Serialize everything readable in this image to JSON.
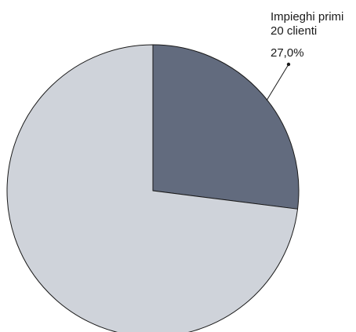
{
  "chart_data": {
    "type": "pie",
    "slices": [
      {
        "label_lines": [
          "Impieghi primi",
          "20 clienti"
        ],
        "value_label": "27,0%",
        "value": 27.0,
        "color": "#626b7e"
      },
      {
        "label_lines": [],
        "value_label": "",
        "value": 73.0,
        "color": "#cfd3da"
      }
    ],
    "legend": "none",
    "outline_color": "#1a1a1a"
  }
}
